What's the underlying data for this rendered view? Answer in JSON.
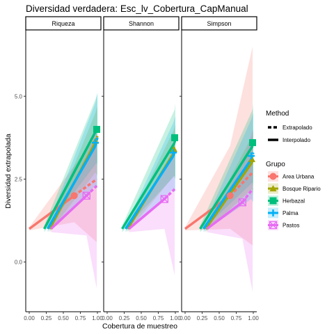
{
  "chart_data": {
    "type": "line",
    "title": "Diversidad verdadera: Esc_lv_Cobertura_CapManual",
    "xlabel": "Cobertura de muestreo",
    "ylabel": "Diversidad extrapolada",
    "xlim": [
      0.0,
      1.0
    ],
    "ylim": [
      -1.5,
      7.0
    ],
    "x_ticks": [
      "0.00",
      "0.25",
      "0.50",
      "0.75",
      "1.00"
    ],
    "x_tick_values": [
      0.0,
      0.25,
      0.5,
      0.75,
      1.0
    ],
    "y_ticks": [
      "0.0",
      "2.5",
      "5.0"
    ],
    "y_tick_values": [
      0.0,
      2.5,
      5.0
    ],
    "grid": false,
    "panels": [
      {
        "label": "Riqueza",
        "series": [
          {
            "group": "Area Urbana",
            "interp": [
              [
                0.0,
                1.0
              ],
              [
                0.66,
                2.0
              ]
            ],
            "extrap": [
              [
                0.66,
                2.0
              ],
              [
                0.99,
                2.5
              ]
            ],
            "ci_upper": [
              [
                0.0,
                1.05
              ],
              [
                0.66,
                2.9
              ],
              [
                0.99,
                3.8
              ]
            ],
            "ci_lower": [
              [
                0.0,
                0.95
              ],
              [
                0.66,
                1.2
              ],
              [
                0.99,
                0.6
              ]
            ],
            "point": [
              0.66,
              2.0
            ]
          },
          {
            "group": "Bosque Ripario",
            "interp": [
              [
                0.3,
                1.0
              ],
              [
                0.97,
                3.6
              ]
            ],
            "extrap": [
              [
                0.97,
                3.6
              ],
              [
                1.0,
                3.8
              ]
            ],
            "ci_upper": [
              [
                0.3,
                1.1
              ],
              [
                0.97,
                4.5
              ],
              [
                1.0,
                4.7
              ]
            ],
            "ci_lower": [
              [
                0.3,
                0.9
              ],
              [
                0.97,
                2.7
              ],
              [
                1.0,
                2.6
              ]
            ],
            "point": [
              0.97,
              3.65
            ]
          },
          {
            "group": "Herbazal",
            "interp": [
              [
                0.22,
                1.0
              ],
              [
                0.99,
                4.0
              ]
            ],
            "extrap": [
              [
                0.99,
                4.0
              ],
              [
                1.0,
                4.05
              ]
            ],
            "ci_upper": [
              [
                0.22,
                1.1
              ],
              [
                0.99,
                5.0
              ],
              [
                1.0,
                5.1
              ]
            ],
            "ci_lower": [
              [
                0.22,
                0.9
              ],
              [
                0.99,
                3.0
              ],
              [
                1.0,
                2.9
              ]
            ],
            "point": [
              0.99,
              4.0
            ]
          },
          {
            "group": "Palma",
            "interp": [
              [
                0.27,
                1.0
              ],
              [
                0.97,
                3.5
              ]
            ],
            "extrap": [
              [
                0.97,
                3.5
              ],
              [
                1.0,
                3.75
              ]
            ],
            "ci_upper": [
              [
                0.27,
                1.1
              ],
              [
                0.97,
                4.8
              ],
              [
                1.0,
                5.1
              ]
            ],
            "ci_lower": [
              [
                0.27,
                0.9
              ],
              [
                0.97,
                2.3
              ],
              [
                1.0,
                2.2
              ]
            ],
            "point": [
              0.97,
              3.6
            ]
          },
          {
            "group": "Pastos",
            "interp": [
              [
                0.32,
                1.0
              ],
              [
                0.84,
                2.0
              ]
            ],
            "extrap": [
              [
                0.84,
                2.0
              ],
              [
                0.99,
                2.3
              ]
            ],
            "ci_upper": [
              [
                0.32,
                1.1
              ],
              [
                0.84,
                3.2
              ],
              [
                0.99,
                4.0
              ]
            ],
            "ci_lower": [
              [
                0.32,
                0.9
              ],
              [
                0.84,
                0.8
              ],
              [
                0.99,
                -0.8
              ]
            ],
            "point": [
              0.84,
              2.0
            ]
          }
        ]
      },
      {
        "label": "Shannon",
        "series": [
          {
            "group": "Bosque Ripario",
            "interp": [
              [
                0.3,
                1.0
              ],
              [
                0.98,
                3.3
              ]
            ],
            "extrap": [
              [
                0.98,
                3.3
              ],
              [
                1.0,
                3.45
              ]
            ],
            "ci_upper": [
              [
                0.3,
                1.1
              ],
              [
                0.98,
                4.0
              ],
              [
                1.0,
                4.15
              ]
            ],
            "ci_lower": [
              [
                0.3,
                0.9
              ],
              [
                0.98,
                2.6
              ],
              [
                1.0,
                2.5
              ]
            ],
            "point": [
              0.98,
              3.4
            ]
          },
          {
            "group": "Herbazal",
            "interp": [
              [
                0.22,
                1.0
              ],
              [
                0.99,
                3.6
              ]
            ],
            "extrap": [
              [
                0.99,
                3.6
              ],
              [
                1.0,
                3.8
              ]
            ],
            "ci_upper": [
              [
                0.22,
                1.1
              ],
              [
                0.99,
                4.6
              ],
              [
                1.0,
                4.8
              ]
            ],
            "ci_lower": [
              [
                0.22,
                0.9
              ],
              [
                0.99,
                2.6
              ],
              [
                1.0,
                2.5
              ]
            ],
            "point": [
              0.99,
              3.75
            ]
          },
          {
            "group": "Palma",
            "interp": [
              [
                0.27,
                1.0
              ],
              [
                0.97,
                3.2
              ]
            ],
            "extrap": [
              [
                0.97,
                3.2
              ],
              [
                1.0,
                3.4
              ]
            ],
            "ci_upper": [
              [
                0.27,
                1.1
              ],
              [
                0.97,
                4.2
              ],
              [
                1.0,
                4.4
              ]
            ],
            "ci_lower": [
              [
                0.27,
                0.9
              ],
              [
                0.97,
                2.2
              ],
              [
                1.0,
                2.1
              ]
            ],
            "point": [
              0.97,
              3.3
            ]
          },
          {
            "group": "Pastos",
            "interp": [
              [
                0.32,
                1.0
              ],
              [
                0.84,
                1.9
              ]
            ],
            "extrap": [
              [
                0.84,
                1.9
              ],
              [
                0.99,
                2.2
              ]
            ],
            "ci_upper": [
              [
                0.32,
                1.1
              ],
              [
                0.84,
                2.8
              ],
              [
                0.99,
                3.6
              ]
            ],
            "ci_lower": [
              [
                0.32,
                0.9
              ],
              [
                0.84,
                1.0
              ],
              [
                0.99,
                -0.4
              ]
            ],
            "point": [
              0.84,
              1.9
            ]
          }
        ]
      },
      {
        "label": "Simpson",
        "series": [
          {
            "group": "Area Urbana",
            "interp": [
              [
                0.0,
                1.0
              ],
              [
                0.66,
                2.0
              ]
            ],
            "extrap": [
              [
                0.66,
                2.0
              ],
              [
                0.99,
                2.7
              ]
            ],
            "ci_upper": [
              [
                0.0,
                1.05
              ],
              [
                0.66,
                3.5
              ],
              [
                0.99,
                6.5
              ]
            ],
            "ci_lower": [
              [
                0.0,
                0.95
              ],
              [
                0.66,
                1.0
              ],
              [
                0.99,
                0.5
              ]
            ],
            "point": [
              0.66,
              2.0
            ]
          },
          {
            "group": "Bosque Ripario",
            "interp": [
              [
                0.3,
                1.0
              ],
              [
                0.98,
                3.0
              ]
            ],
            "extrap": [
              [
                0.98,
                3.0
              ],
              [
                1.0,
                3.15
              ]
            ],
            "ci_upper": [
              [
                0.3,
                1.1
              ],
              [
                0.98,
                3.8
              ],
              [
                1.0,
                4.0
              ]
            ],
            "ci_lower": [
              [
                0.3,
                0.9
              ],
              [
                0.98,
                2.2
              ],
              [
                1.0,
                2.0
              ]
            ],
            "point": [
              0.98,
              3.1
            ]
          },
          {
            "group": "Herbazal",
            "interp": [
              [
                0.22,
                1.0
              ],
              [
                0.99,
                3.5
              ]
            ],
            "extrap": [
              [
                0.99,
                3.5
              ],
              [
                1.0,
                3.7
              ]
            ],
            "ci_upper": [
              [
                0.22,
                1.1
              ],
              [
                0.99,
                4.6
              ],
              [
                1.0,
                4.8
              ]
            ],
            "ci_lower": [
              [
                0.22,
                0.9
              ],
              [
                0.99,
                2.4
              ],
              [
                1.0,
                2.3
              ]
            ],
            "point": [
              0.99,
              3.6
            ]
          },
          {
            "group": "Palma",
            "interp": [
              [
                0.27,
                1.0
              ],
              [
                0.97,
                3.1
              ]
            ],
            "extrap": [
              [
                0.97,
                3.1
              ],
              [
                1.0,
                3.3
              ]
            ],
            "ci_upper": [
              [
                0.27,
                1.1
              ],
              [
                0.97,
                4.3
              ],
              [
                1.0,
                4.5
              ]
            ],
            "ci_lower": [
              [
                0.27,
                0.9
              ],
              [
                0.97,
                1.9
              ],
              [
                1.0,
                1.8
              ]
            ],
            "point": [
              0.97,
              3.2
            ]
          },
          {
            "group": "Pastos",
            "interp": [
              [
                0.32,
                1.0
              ],
              [
                0.84,
                1.8
              ]
            ],
            "extrap": [
              [
                0.84,
                1.8
              ],
              [
                0.99,
                2.2
              ]
            ],
            "ci_upper": [
              [
                0.32,
                1.1
              ],
              [
                0.84,
                2.9
              ],
              [
                0.99,
                4.0
              ]
            ],
            "ci_lower": [
              [
                0.32,
                0.9
              ],
              [
                0.84,
                0.7
              ],
              [
                0.99,
                -0.9
              ]
            ],
            "point": [
              0.84,
              1.8
            ]
          }
        ]
      }
    ],
    "legend": {
      "method_title": "Method",
      "method_items": [
        "Extrapolado",
        "Interpolado"
      ],
      "group_title": "Grupo",
      "groups": [
        {
          "name": "Area Urbana",
          "color": "#F8766D",
          "shape": "circle"
        },
        {
          "name": "Bosque Ripario",
          "color": "#A3A500",
          "shape": "triangle"
        },
        {
          "name": "Herbazal",
          "color": "#00BF7D",
          "shape": "square"
        },
        {
          "name": "Palma",
          "color": "#00B0F6",
          "shape": "plus"
        },
        {
          "name": "Pastos",
          "color": "#E76BF3",
          "shape": "square-x"
        }
      ],
      "placement": "right"
    }
  }
}
